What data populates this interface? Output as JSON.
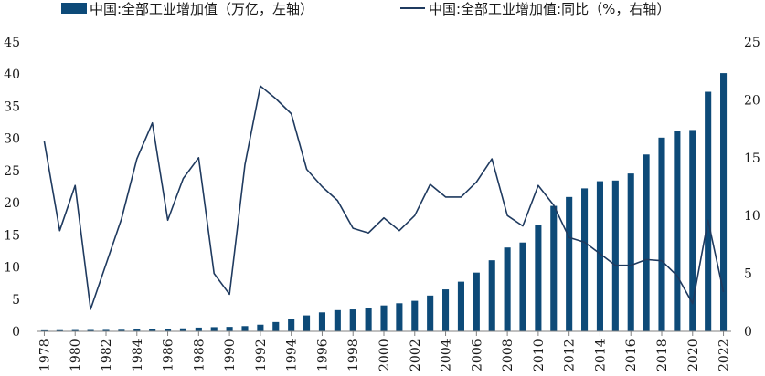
{
  "chart_data": {
    "type": "bar+line",
    "colors": {
      "bar": "#0d4a78",
      "line": "#1f3a5f",
      "axis": "#808080"
    },
    "legend": {
      "placement": "top",
      "items": [
        {
          "label": "中国:全部工业增加值（万亿，左轴）",
          "kind": "bar"
        },
        {
          "label": "中国:全部工业增加值:同比（%，右轴）",
          "kind": "line"
        }
      ]
    },
    "x": [
      1978,
      1979,
      1980,
      1981,
      1982,
      1983,
      1984,
      1985,
      1986,
      1987,
      1988,
      1989,
      1990,
      1991,
      1992,
      1993,
      1994,
      1995,
      1996,
      1997,
      1998,
      1999,
      2000,
      2001,
      2002,
      2003,
      2004,
      2005,
      2006,
      2007,
      2008,
      2009,
      2010,
      2011,
      2012,
      2013,
      2014,
      2015,
      2016,
      2017,
      2018,
      2019,
      2020,
      2021,
      2022
    ],
    "x_tick_labels": [
      "1978",
      "1980",
      "1982",
      "1984",
      "1986",
      "1988",
      "1990",
      "1992",
      "1994",
      "1996",
      "1998",
      "2000",
      "2002",
      "2004",
      "2006",
      "2008",
      "2010",
      "2012",
      "2014",
      "2016",
      "2018",
      "2020",
      "2022"
    ],
    "series": [
      {
        "name": "中国:全部工业增加值（万亿，左轴）",
        "type": "bar",
        "axis": "left",
        "values": [
          0.16,
          0.18,
          0.2,
          0.21,
          0.22,
          0.24,
          0.28,
          0.34,
          0.4,
          0.46,
          0.58,
          0.65,
          0.69,
          0.81,
          1.03,
          1.44,
          1.94,
          2.47,
          2.94,
          3.29,
          3.4,
          3.58,
          4.02,
          4.36,
          4.74,
          5.56,
          6.52,
          7.72,
          9.13,
          11.05,
          13.03,
          13.81,
          16.51,
          19.51,
          20.89,
          22.23,
          23.34,
          23.45,
          24.54,
          27.5,
          30.12,
          31.18,
          31.31,
          37.26,
          40.16
        ]
      },
      {
        "name": "中国:全部工业增加值:同比（%，右轴）",
        "type": "line",
        "axis": "right",
        "values": [
          16.4,
          8.7,
          12.6,
          1.9,
          5.8,
          9.7,
          14.9,
          18.0,
          9.6,
          13.2,
          15.0,
          5.0,
          3.2,
          14.4,
          21.2,
          20.1,
          18.8,
          14.0,
          12.5,
          11.3,
          8.9,
          8.5,
          9.8,
          8.7,
          10.0,
          12.7,
          11.6,
          11.6,
          12.9,
          14.9,
          10.0,
          9.1,
          12.6,
          10.9,
          8.1,
          7.7,
          6.7,
          5.7,
          5.7,
          6.2,
          6.1,
          4.8,
          2.4,
          9.6,
          3.4
        ]
      }
    ],
    "y_left": {
      "min": 0,
      "max": 45,
      "ticks": [
        "0",
        "5",
        "10",
        "15",
        "20",
        "25",
        "30",
        "35",
        "40",
        "45"
      ]
    },
    "y_right": {
      "min": 0,
      "max": 25,
      "ticks": [
        "0",
        "5",
        "10",
        "15",
        "20",
        "25"
      ]
    },
    "grid": false
  }
}
